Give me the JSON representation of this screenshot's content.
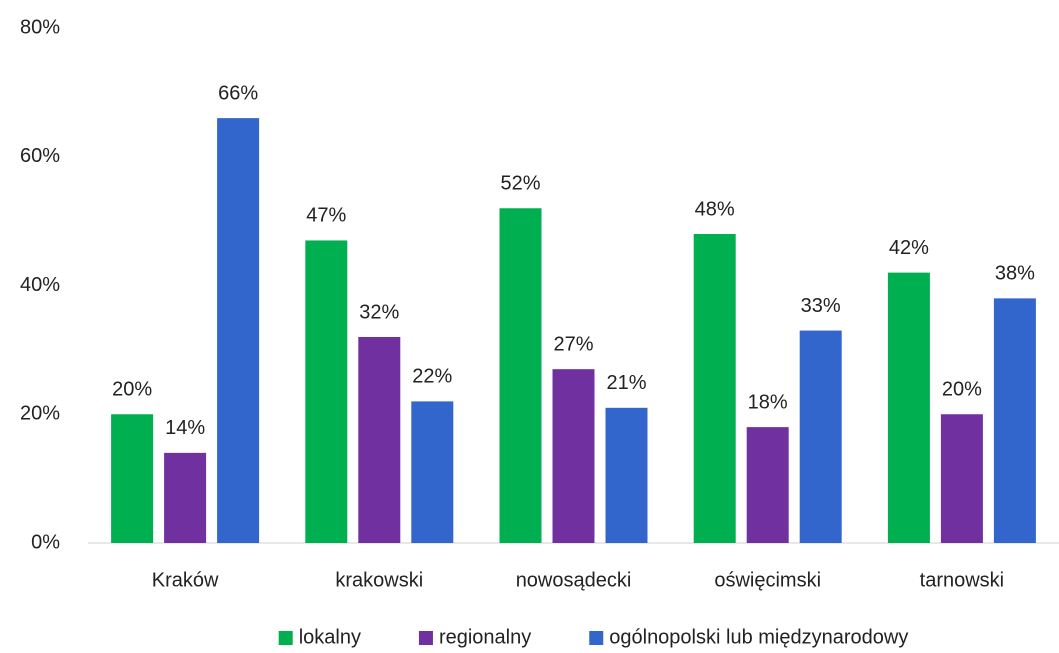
{
  "chart_data": {
    "type": "bar",
    "categories": [
      "Kraków",
      "krakowski",
      "nowosądecki",
      "oświęcimski",
      "tarnowski"
    ],
    "series": [
      {
        "name": "lokalny",
        "color": "#00b050",
        "values": [
          20,
          47,
          52,
          48,
          42
        ],
        "value_labels": [
          "20%",
          "47%",
          "52%",
          "48%",
          "42%"
        ]
      },
      {
        "name": "regionalny",
        "color": "#7030a0",
        "values": [
          14,
          32,
          27,
          18,
          20
        ],
        "value_labels": [
          "14%",
          "32%",
          "27%",
          "18%",
          "20%"
        ]
      },
      {
        "name": "ogólnopolski lub międzynarodowy",
        "color": "#3366cc",
        "values": [
          66,
          22,
          21,
          33,
          38
        ],
        "value_labels": [
          "66%",
          "22%",
          "21%",
          "33%",
          "38%"
        ]
      }
    ],
    "ylim": [
      0,
      80
    ],
    "yticks": [
      {
        "value": 0,
        "label": "0%"
      },
      {
        "value": 20,
        "label": "20%"
      },
      {
        "value": 40,
        "label": "40%"
      },
      {
        "value": 60,
        "label": "60%"
      },
      {
        "value": 80,
        "label": "80%"
      }
    ],
    "grid": false,
    "legend": "bottom"
  }
}
